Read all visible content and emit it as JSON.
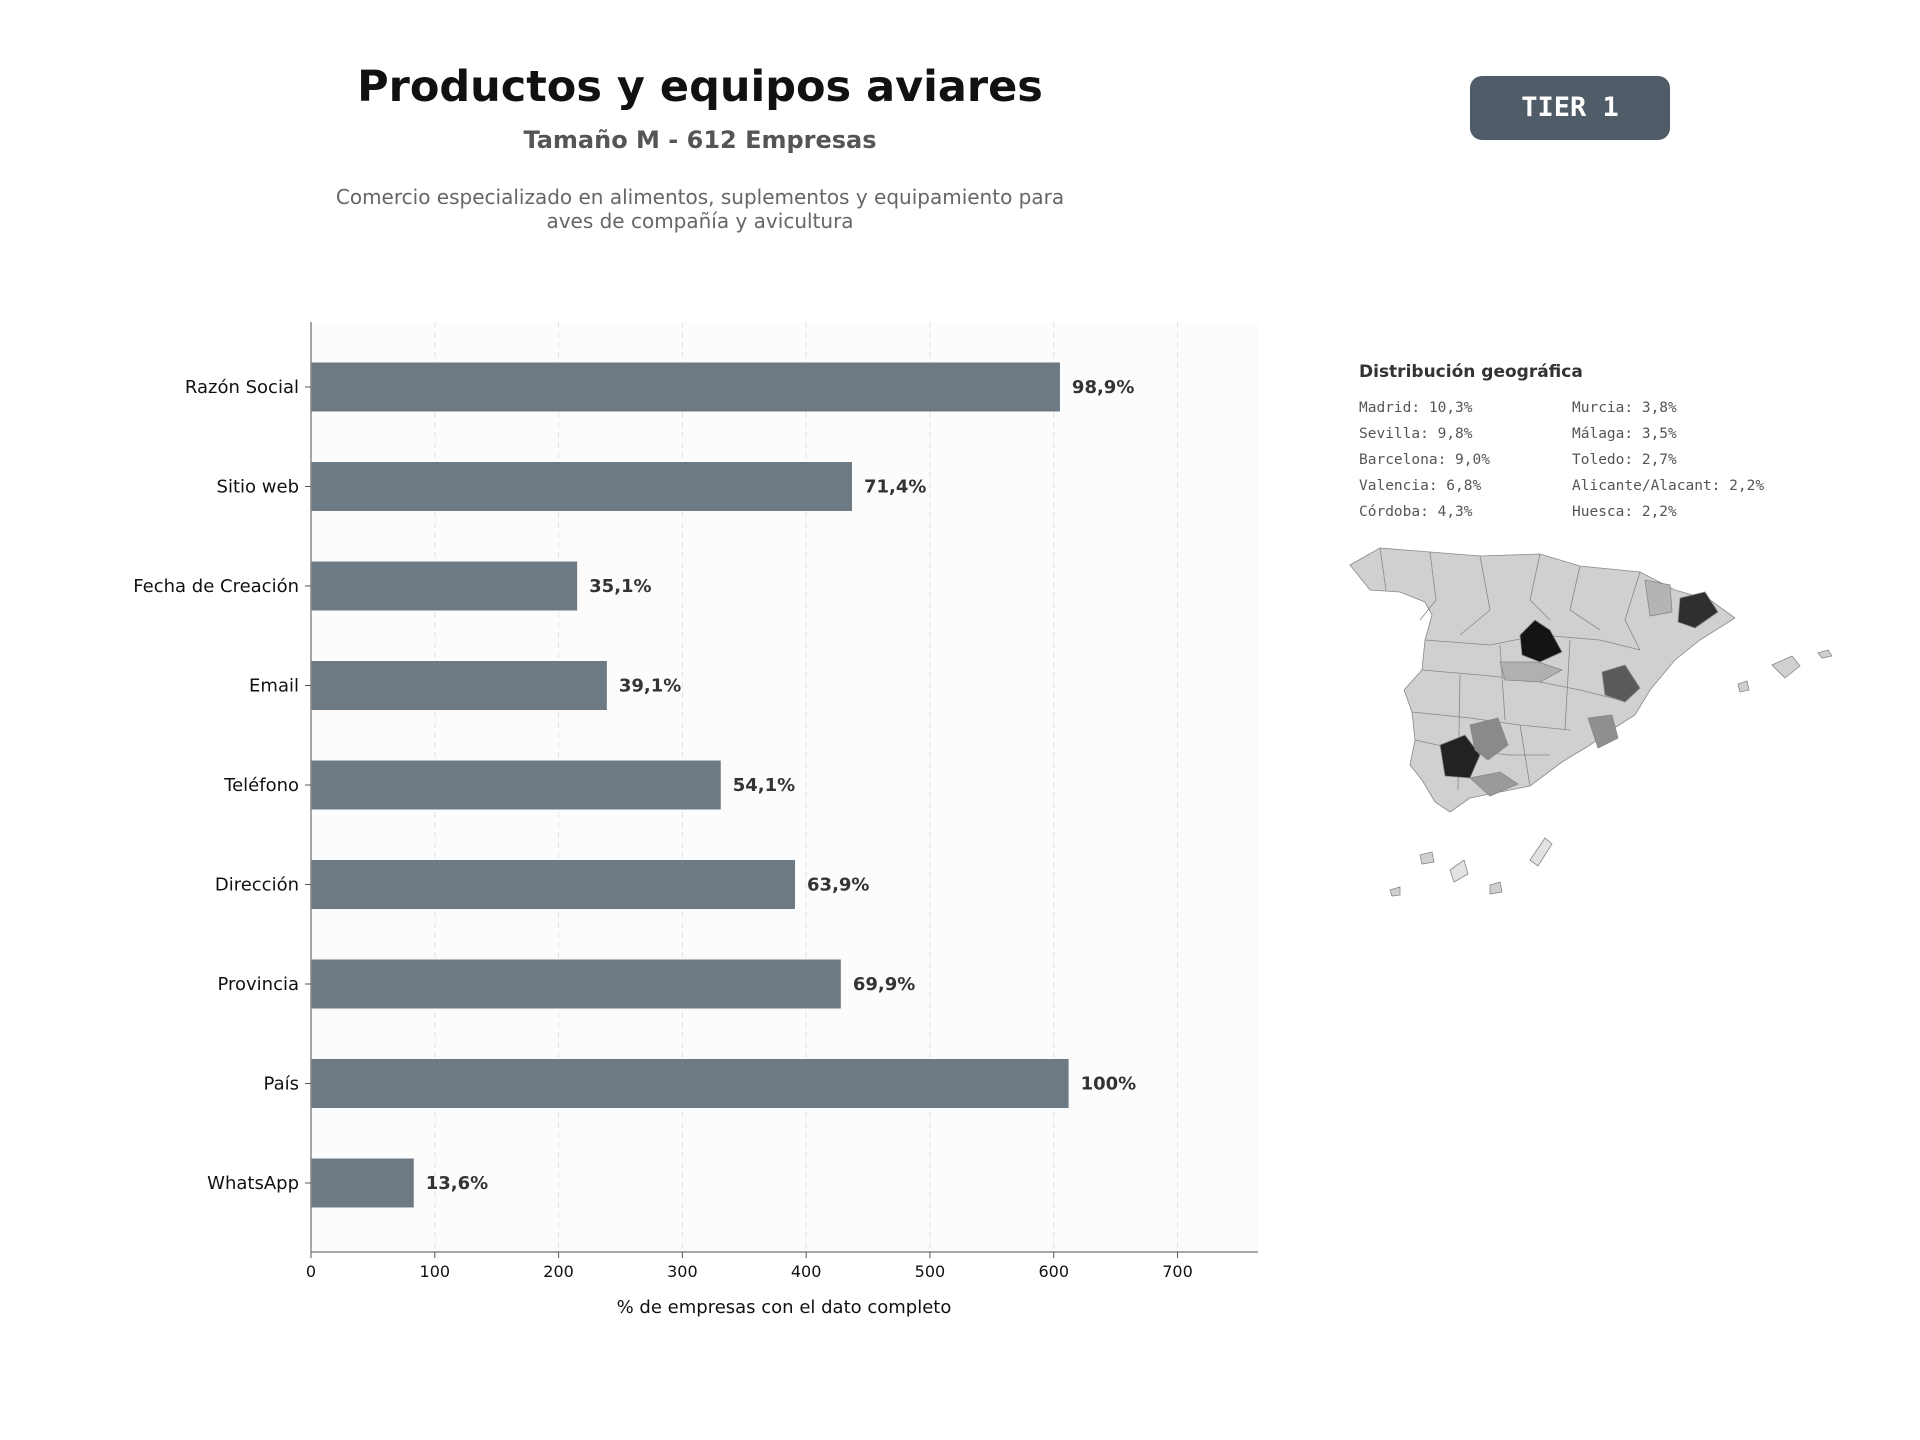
{
  "header": {
    "title": "Productos y equipos aviares",
    "subtitle": "Tamaño M - 612 Empresas",
    "description_line1": "Comercio especializado en alimentos, suplementos y equipamiento para",
    "description_line2": "aves de compañía y avicultura",
    "tier_label": "TIER 1"
  },
  "chart_data": {
    "type": "bar",
    "orientation": "horizontal",
    "categories": [
      "Razón Social",
      "Sitio web",
      "Fecha de Creación",
      "Email",
      "Teléfono",
      "Dirección",
      "Provincia",
      "País",
      "WhatsApp"
    ],
    "values": [
      605,
      437,
      215,
      239,
      331,
      391,
      428,
      612,
      83
    ],
    "labels": [
      "98,9%",
      "71,4%",
      "35,1%",
      "39,1%",
      "54,1%",
      "63,9%",
      "69,9%",
      "100%",
      "13,6%"
    ],
    "xlabel": "% de empresas con el dato completo",
    "xlim": [
      0,
      765
    ],
    "xticks": [
      0,
      100,
      200,
      300,
      400,
      500,
      600,
      700
    ],
    "grid": "vertical-dashed",
    "bar_color": "#6e7a83"
  },
  "geo": {
    "title": "Distribución geográfica",
    "items": [
      "Madrid: 10,3%",
      "Murcia: 3,8%",
      "Sevilla: 9,8%",
      "Málaga: 3,5%",
      "Barcelona: 9,0%",
      "Toledo: 2,7%",
      "Valencia: 6,8%",
      "Alicante/Alacant: 2,2%",
      "Córdoba: 4,3%",
      "Huesca: 2,2%"
    ],
    "map_colors": {
      "high": "#111111",
      "mid": "#5a5a5a",
      "low": "#d0d0d0",
      "border": "#888888"
    }
  }
}
